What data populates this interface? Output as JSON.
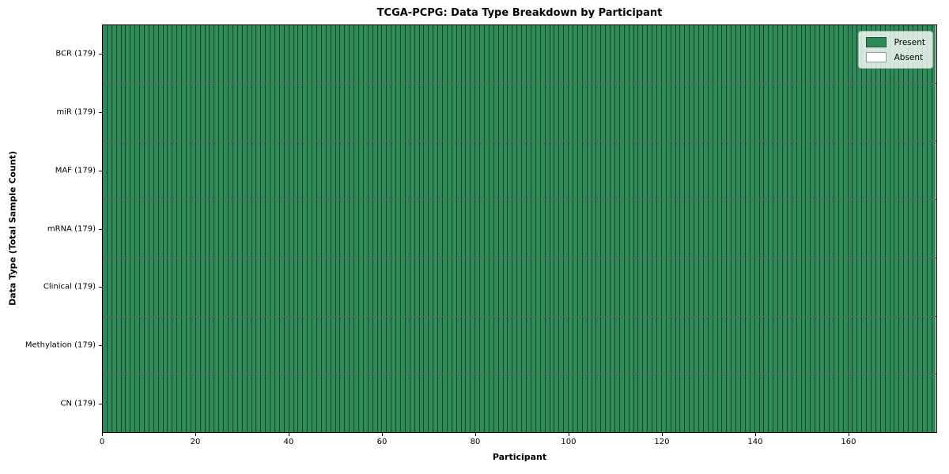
{
  "figure": {
    "title": "TCGA-PCPG: Data Type Breakdown by Participant",
    "xlabel": "Participant",
    "ylabel": "Data Type (Total Sample Count)"
  },
  "legend": {
    "position": "upper-right",
    "entries": [
      {
        "label": "Present",
        "color": "#2e8b57"
      },
      {
        "label": "Absent",
        "color": "#ffffff"
      }
    ]
  },
  "chart_data": {
    "type": "heatmap",
    "title": "TCGA-PCPG: Data Type Breakdown by Participant",
    "xlabel": "Participant",
    "ylabel": "Data Type (Total Sample Count)",
    "legend_entries": [
      "Present",
      "Absent"
    ],
    "legend_position": "upper right",
    "present_color": "#2e8b57",
    "absent_color": "#ffffff",
    "cell_edge_color": "rgba(0,0,0,0.5)",
    "n_participants": 179,
    "xlim": [
      0,
      179
    ],
    "x_ticks": [
      0,
      20,
      40,
      60,
      80,
      100,
      120,
      140,
      160
    ],
    "grid": "cell-borders",
    "cells": "all_present",
    "rows": [
      {
        "label": "BCR (179)",
        "data_type": "BCR",
        "total_samples": 179,
        "present": 179,
        "absent": 0
      },
      {
        "label": "miR (179)",
        "data_type": "miR",
        "total_samples": 179,
        "present": 179,
        "absent": 0
      },
      {
        "label": "MAF (179)",
        "data_type": "MAF",
        "total_samples": 179,
        "present": 179,
        "absent": 0
      },
      {
        "label": "mRNA (179)",
        "data_type": "mRNA",
        "total_samples": 179,
        "present": 179,
        "absent": 0
      },
      {
        "label": "Clinical (179)",
        "data_type": "Clinical",
        "total_samples": 179,
        "present": 179,
        "absent": 0
      },
      {
        "label": "Methylation (179)",
        "data_type": "Methylation",
        "total_samples": 179,
        "present": 179,
        "absent": 0
      },
      {
        "label": "CN (179)",
        "data_type": "CN",
        "total_samples": 179,
        "present": 179,
        "absent": 0
      }
    ]
  }
}
